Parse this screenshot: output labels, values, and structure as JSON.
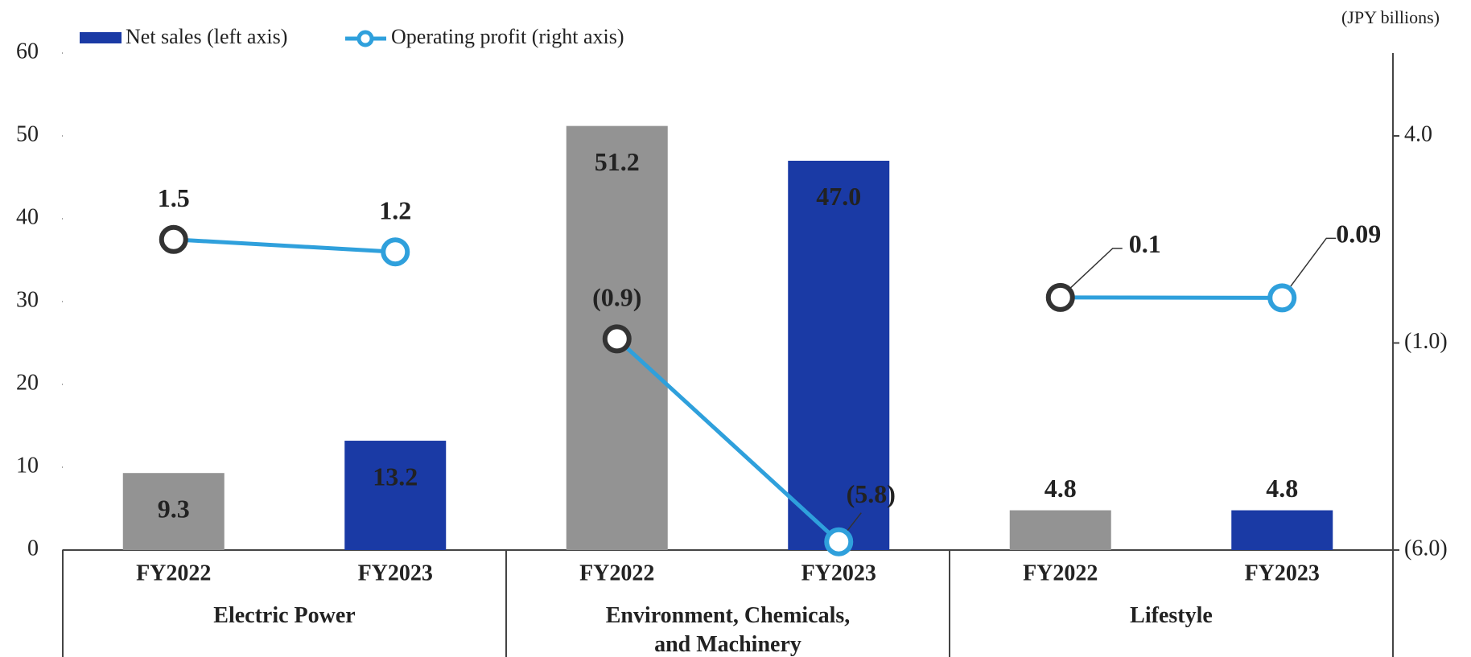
{
  "chart_data": {
    "type": "bar-line",
    "unit_label": "(JPY billions)",
    "categories": [
      "FY2022",
      "FY2023",
      "FY2022",
      "FY2023",
      "FY2022",
      "FY2023"
    ],
    "groups": [
      "Electric Power",
      "Environment, Chemicals, and Machinery",
      "Lifestyle"
    ],
    "series": [
      {
        "name": "Net sales (left axis)",
        "color": "#1a3aa5",
        "colors": [
          "#939393",
          "#1a3aa5",
          "#939393",
          "#1a3aa5",
          "#939393",
          "#1a3aa5"
        ],
        "values": [
          9.3,
          13.2,
          51.2,
          47.0,
          4.8,
          4.8
        ],
        "value_labels": [
          "9.3",
          "13.2",
          "51.2",
          "47.0",
          "4.8",
          "4.8"
        ]
      },
      {
        "name": "Operating profit (right axis)",
        "color": "#2fa0dc",
        "axis": "y2",
        "colors": [
          "#333333",
          "#2fa0dc",
          "#333333",
          "#2fa0dc",
          "#333333",
          "#2fa0dc"
        ],
        "values": [
          1.5,
          1.2,
          -0.9,
          -5.8,
          0.1,
          0.09
        ],
        "value_labels": [
          "1.5",
          "1.2",
          "(0.9)",
          "(5.8)",
          "0.1",
          "0.09"
        ]
      }
    ],
    "ylim": [
      0,
      60
    ],
    "yticks": [
      0,
      10,
      20,
      30,
      40,
      50,
      60
    ],
    "y2lim": [
      -6,
      6
    ],
    "y2ticks": [
      {
        "value": 4,
        "label": "4.0"
      },
      {
        "value": -1,
        "label": "(1.0)"
      },
      {
        "value": -6,
        "label": "(6.0)"
      }
    ],
    "legend": "top-left",
    "grid": false
  }
}
